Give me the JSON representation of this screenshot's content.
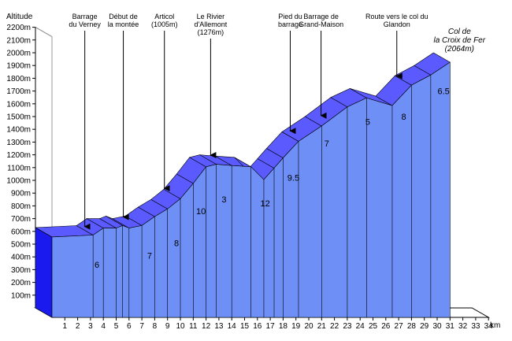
{
  "chart_data": {
    "type": "area",
    "title": "",
    "ylabel": "Altitude",
    "xlabel": "",
    "x_unit": "km",
    "y_ticks": [
      "100m",
      "200m",
      "300m",
      "400m",
      "500m",
      "600m",
      "700m",
      "800m",
      "900m",
      "1000m",
      "1100m",
      "1200m",
      "1300m",
      "1400m",
      "1500m",
      "1600m",
      "1700m",
      "1800m",
      "1900m",
      "2000m",
      "2100m",
      "2200m"
    ],
    "x_ticks": [
      1,
      2,
      3,
      4,
      5,
      6,
      7,
      8,
      9,
      10,
      11,
      12,
      13,
      14,
      15,
      16,
      17,
      18,
      19,
      20,
      21,
      22,
      23,
      24,
      25,
      26,
      27,
      28,
      29,
      30,
      31,
      32,
      33,
      34
    ],
    "xlim": [
      0,
      34
    ],
    "ylim": [
      0,
      2200
    ],
    "grid": false,
    "profile": [
      {
        "km": 0,
        "alt": 630
      },
      {
        "km": 3.2,
        "alt": 645
      },
      {
        "km": 4.0,
        "alt": 700
      },
      {
        "km": 5.0,
        "alt": 700
      },
      {
        "km": 5.5,
        "alt": 720
      },
      {
        "km": 6.0,
        "alt": 700
      },
      {
        "km": 7.0,
        "alt": 720
      },
      {
        "km": 8.0,
        "alt": 790
      },
      {
        "km": 9.0,
        "alt": 850
      },
      {
        "km": 10.0,
        "alt": 930
      },
      {
        "km": 11.0,
        "alt": 1050
      },
      {
        "km": 12.0,
        "alt": 1180
      },
      {
        "km": 12.8,
        "alt": 1200
      },
      {
        "km": 14.0,
        "alt": 1190
      },
      {
        "km": 15.5,
        "alt": 1180
      },
      {
        "km": 16.5,
        "alt": 1080
      },
      {
        "km": 17.3,
        "alt": 1170
      },
      {
        "km": 18.0,
        "alt": 1250
      },
      {
        "km": 19.2,
        "alt": 1380
      },
      {
        "km": 21.0,
        "alt": 1500
      },
      {
        "km": 23.0,
        "alt": 1650
      },
      {
        "km": 24.5,
        "alt": 1720
      },
      {
        "km": 26.5,
        "alt": 1660
      },
      {
        "km": 28.0,
        "alt": 1820
      },
      {
        "km": 29.5,
        "alt": 1900
      },
      {
        "km": 31.0,
        "alt": 2000
      }
    ],
    "gradients": [
      {
        "label": "6",
        "km": 3.5,
        "alt": 390
      },
      {
        "label": "7",
        "km": 7.6,
        "alt": 460
      },
      {
        "label": "8",
        "km": 9.7,
        "alt": 560
      },
      {
        "label": "10",
        "km": 11.6,
        "alt": 810
      },
      {
        "label": "3",
        "km": 13.4,
        "alt": 900
      },
      {
        "label": "12",
        "km": 16.6,
        "alt": 870
      },
      {
        "label": "9.5",
        "km": 18.8,
        "alt": 1070
      },
      {
        "label": "7",
        "km": 21.4,
        "alt": 1340
      },
      {
        "label": "5",
        "km": 24.6,
        "alt": 1510
      },
      {
        "label": "8",
        "km": 27.4,
        "alt": 1550
      },
      {
        "label": "6.5",
        "km": 30.5,
        "alt": 1750
      }
    ],
    "annotations": [
      {
        "lines": [
          "Barrage",
          "du Verney"
        ],
        "km": 3.2,
        "alt": 650
      },
      {
        "lines": [
          "Début de",
          "la montée"
        ],
        "km": 6.2,
        "alt": 725
      },
      {
        "lines": [
          "Articol",
          "(1005m)"
        ],
        "km": 9.4,
        "alt": 950
      },
      {
        "lines": [
          "Le Rivier",
          "d'Allemont",
          "(1276m)"
        ],
        "km": 13.0,
        "alt": 1210
      },
      {
        "lines": [
          "Pied du",
          "barrage"
        ],
        "km": 19.2,
        "alt": 1400
      },
      {
        "lines": [
          "Barrage de",
          "Grand-Maison"
        ],
        "km": 21.6,
        "alt": 1520
      },
      {
        "lines": [
          "Route vers le col du",
          "Glandon"
        ],
        "km": 27.5,
        "alt": 1830
      }
    ],
    "summit": {
      "lines": [
        "Col de",
        "la Croix de Fer",
        "(2064m)"
      ],
      "km": 31.0,
      "alt": 2000
    }
  }
}
